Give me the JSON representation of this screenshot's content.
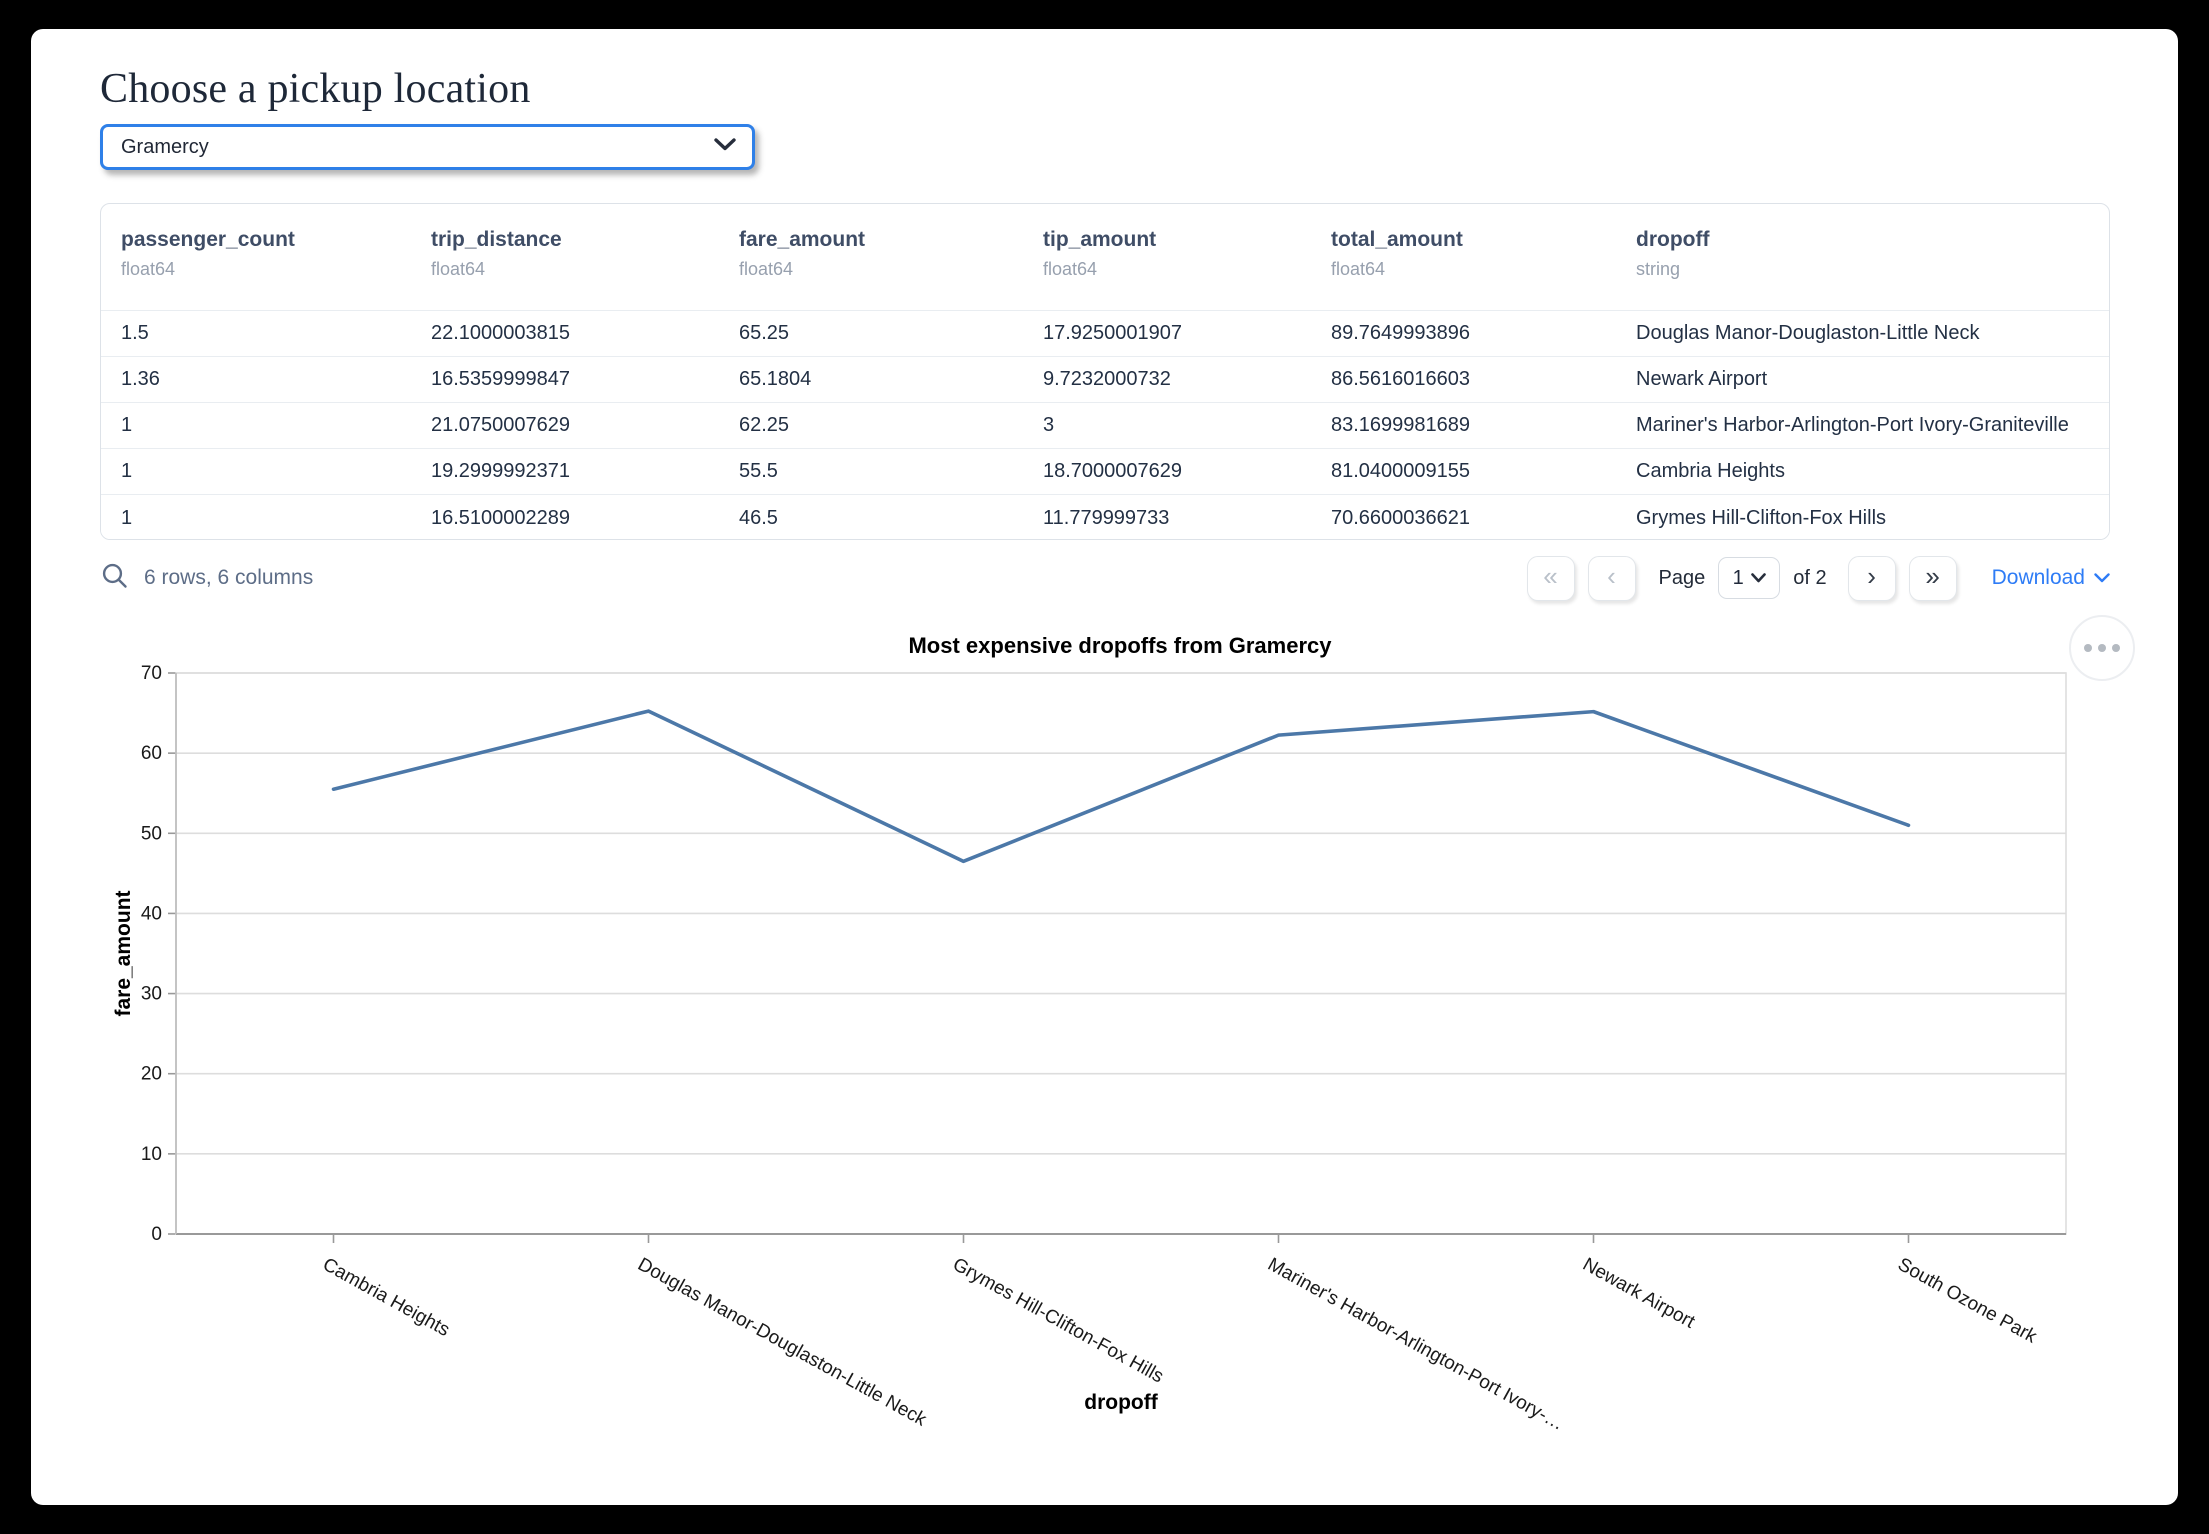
{
  "page": {
    "title": "Choose a pickup location"
  },
  "pickup_select": {
    "value": "Gramercy"
  },
  "table": {
    "columns": [
      {
        "name": "passenger_count",
        "type": "float64"
      },
      {
        "name": "trip_distance",
        "type": "float64"
      },
      {
        "name": "fare_amount",
        "type": "float64"
      },
      {
        "name": "tip_amount",
        "type": "float64"
      },
      {
        "name": "total_amount",
        "type": "float64"
      },
      {
        "name": "dropoff",
        "type": "string"
      }
    ],
    "rows": [
      [
        "1.5",
        "22.1000003815",
        "65.25",
        "17.9250001907",
        "89.7649993896",
        "Douglas Manor-Douglaston-Little Neck"
      ],
      [
        "1.36",
        "16.5359999847",
        "65.1804",
        "9.7232000732",
        "86.5616016603",
        "Newark Airport"
      ],
      [
        "1",
        "21.0750007629",
        "62.25",
        "3",
        "83.1699981689",
        "Mariner's Harbor-Arlington-Port Ivory-Graniteville"
      ],
      [
        "1",
        "19.2999992371",
        "55.5",
        "18.7000007629",
        "81.0400009155",
        "Cambria Heights"
      ],
      [
        "1",
        "16.5100002289",
        "46.5",
        "11.779999733",
        "70.6600036621",
        "Grymes Hill-Clifton-Fox Hills"
      ]
    ],
    "summary": "6 rows, 6 columns",
    "pagination": {
      "page_label": "Page",
      "current_page": "1",
      "of_label": "of 2",
      "download_label": "Download",
      "icons": {
        "first": "«",
        "prev": "‹",
        "next": "›",
        "last": "»"
      }
    }
  },
  "chart_data": {
    "type": "line",
    "title": "Most expensive dropoffs from Gramercy",
    "xlabel": "dropoff",
    "ylabel": "fare_amount",
    "categories": [
      "Cambria Heights",
      "Douglas Manor-Douglaston-Little Neck",
      "Grymes Hill-Clifton-Fox Hills",
      "Mariner's Harbor-Arlington-Port Ivory-…",
      "Newark Airport",
      "South Ozone Park"
    ],
    "values": [
      55.5,
      65.25,
      46.5,
      62.25,
      65.18,
      51
    ],
    "ylim": [
      0,
      70
    ],
    "ytick_step": 10,
    "grid": true,
    "legend_position": "none",
    "line_color": "#4c78a8"
  },
  "colors": {
    "select_focus_border": "#2f80e8",
    "download_link": "#2e7cf6",
    "chart_line": "#4c78a8"
  }
}
